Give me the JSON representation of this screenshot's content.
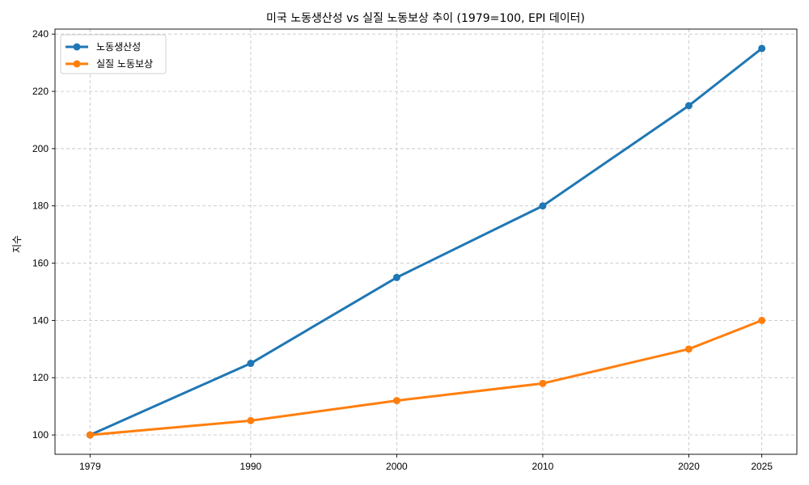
{
  "chart_data": {
    "type": "line",
    "title": "미국 노동생산성 vs 실질 노동보상 추이 (1979=100, EPI 데이터)",
    "xlabel": "",
    "ylabel": "지수",
    "x": [
      1979,
      1990,
      2000,
      2010,
      2020,
      2025
    ],
    "x_tick_labels": [
      "1979",
      "1990",
      "2000",
      "2010",
      "2020",
      "2025"
    ],
    "xlim": [
      1976.6,
      2027.4
    ],
    "ylim": [
      93.25,
      241.75
    ],
    "y_ticks": [
      100,
      120,
      140,
      160,
      180,
      200,
      220,
      240
    ],
    "y_tick_labels": [
      "100",
      "120",
      "140",
      "160",
      "180",
      "200",
      "220",
      "240"
    ],
    "grid": true,
    "legend_position": "top-left",
    "series": [
      {
        "name": "노동생산성",
        "color": "#1f77b4",
        "values": [
          100,
          125,
          155,
          180,
          215,
          235
        ]
      },
      {
        "name": "실질 노동보상",
        "color": "#ff7f0e",
        "values": [
          100,
          105,
          112,
          118,
          130,
          140
        ]
      }
    ]
  }
}
